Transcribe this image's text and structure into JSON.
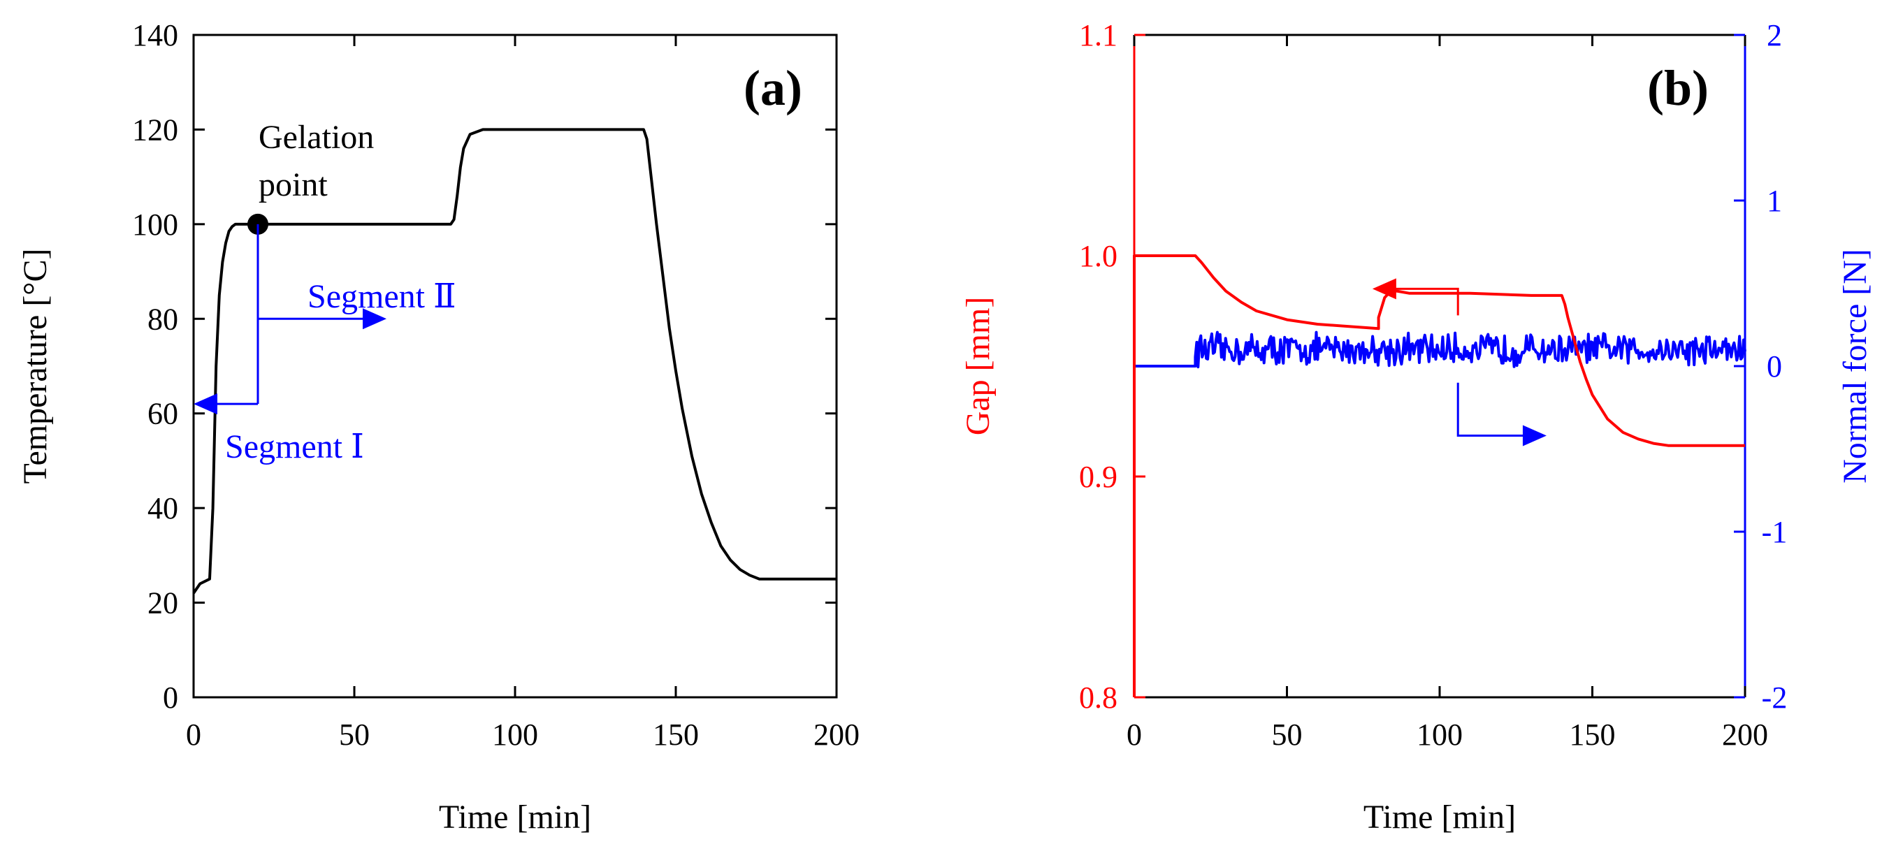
{
  "colors": {
    "black": "#000000",
    "red": "#ff0000",
    "blue": "#0000ff"
  },
  "chart_data": [
    {
      "type": "line",
      "panel_label": "(a)",
      "xlabel": "Time [min]",
      "ylabel": "Temperature [°C]",
      "xlim": [
        0,
        200
      ],
      "ylim": [
        0,
        140
      ],
      "xticks": [
        0,
        50,
        100,
        150,
        200
      ],
      "yticks": [
        0,
        20,
        40,
        60,
        80,
        100,
        120,
        140
      ],
      "xtick_labels": [
        "0",
        "50",
        "100",
        "150",
        "200"
      ],
      "ytick_labels": [
        "0",
        "20",
        "40",
        "60",
        "80",
        "100",
        "120",
        "140"
      ],
      "series": [
        {
          "name": "Temperature",
          "color": "#000000",
          "x": [
            0,
            2,
            5,
            6,
            7,
            8,
            9,
            10,
            11,
            12,
            13,
            14,
            16,
            20,
            40,
            60,
            80,
            81,
            82,
            83,
            84,
            86,
            90,
            110,
            130,
            140,
            141,
            142,
            144,
            146,
            148,
            150,
            152,
            155,
            158,
            161,
            164,
            167,
            170,
            173,
            176,
            178,
            190,
            200
          ],
          "y": [
            22,
            24,
            25,
            40,
            70,
            85,
            92,
            96,
            98.5,
            99.5,
            100,
            100,
            100,
            100,
            100,
            100,
            100,
            101,
            106,
            112,
            116,
            119,
            120,
            120,
            120,
            120,
            118,
            112,
            100,
            89,
            78,
            69,
            61,
            51,
            43,
            37,
            32,
            29,
            27,
            25.8,
            25,
            25,
            25,
            25
          ]
        }
      ],
      "annotations": [
        {
          "text": "Gelation point",
          "lines": [
            "Gelation",
            "point"
          ],
          "at": [
            20,
            100
          ]
        },
        {
          "text": "Segment Ⅱ",
          "arrow_from": [
            20,
            62
          ],
          "arrow_to": [
            60,
            80
          ],
          "color": "#0000ff"
        },
        {
          "text": "Segment Ⅰ",
          "arrow_to": [
            0,
            62
          ],
          "color": "#0000ff"
        }
      ]
    },
    {
      "type": "line",
      "panel_label": "(b)",
      "xlabel": "Time [min]",
      "ylabel_left": "Gap [mm]",
      "ylabel_right": "Normal force [N]",
      "xlim": [
        0,
        200
      ],
      "ylim_left": [
        0.8,
        1.1
      ],
      "ylim_right": [
        -2,
        2
      ],
      "xticks": [
        0,
        50,
        100,
        150,
        200
      ],
      "xtick_labels": [
        "0",
        "50",
        "100",
        "150",
        "200"
      ],
      "yticks_left": [
        0.8,
        0.9,
        1.0,
        1.1
      ],
      "yticks_left_labels": [
        "0.8",
        "0.9",
        "1.0",
        "1.1"
      ],
      "yticks_right": [
        -2,
        -1,
        0,
        1,
        2
      ],
      "yticks_right_labels": [
        "-2",
        "-1",
        "0",
        "1",
        "2"
      ],
      "series": [
        {
          "name": "Gap",
          "axis": "left",
          "color": "#ff0000",
          "x": [
            0,
            0,
            20,
            22,
            26,
            30,
            35,
            40,
            50,
            60,
            70,
            80,
            80,
            82,
            84,
            86,
            90,
            110,
            130,
            140,
            141,
            142,
            144,
            146,
            148,
            150,
            155,
            160,
            165,
            170,
            175,
            180,
            200
          ],
          "y": [
            0.8,
            1.0,
            1.0,
            0.997,
            0.99,
            0.984,
            0.979,
            0.975,
            0.971,
            0.969,
            0.968,
            0.967,
            0.972,
            0.981,
            0.984,
            0.984,
            0.983,
            0.983,
            0.982,
            0.982,
            0.978,
            0.972,
            0.962,
            0.952,
            0.944,
            0.937,
            0.926,
            0.92,
            0.917,
            0.915,
            0.914,
            0.914,
            0.914
          ]
        },
        {
          "name": "Normal force",
          "axis": "right",
          "color": "#0000ff",
          "x": [
            0,
            20,
            20,
            30,
            40,
            50,
            60,
            70,
            80,
            90,
            100,
            110,
            120,
            130,
            140,
            150,
            160,
            170,
            180,
            190,
            200
          ],
          "y": [
            0,
            0,
            0.1,
            0.1,
            0.1,
            0.1,
            0.1,
            0.1,
            0.1,
            0.1,
            0.1,
            0.1,
            0.1,
            0.1,
            0.1,
            0.1,
            0.1,
            0.1,
            0.1,
            0.1,
            0.1
          ],
          "noise": true
        }
      ],
      "annotations": [
        {
          "type": "arrow",
          "points_to": "left",
          "color": "#ff0000",
          "from": [
            106,
            0.973
          ],
          "corner": [
            106,
            0.985
          ],
          "to": [
            78,
            0.985
          ]
        },
        {
          "type": "arrow",
          "points_to": "right",
          "color": "#0000ff",
          "from": [
            106,
            -0.1
          ],
          "corner": [
            106,
            -0.42
          ],
          "to": [
            135,
            -0.42
          ]
        }
      ]
    }
  ]
}
